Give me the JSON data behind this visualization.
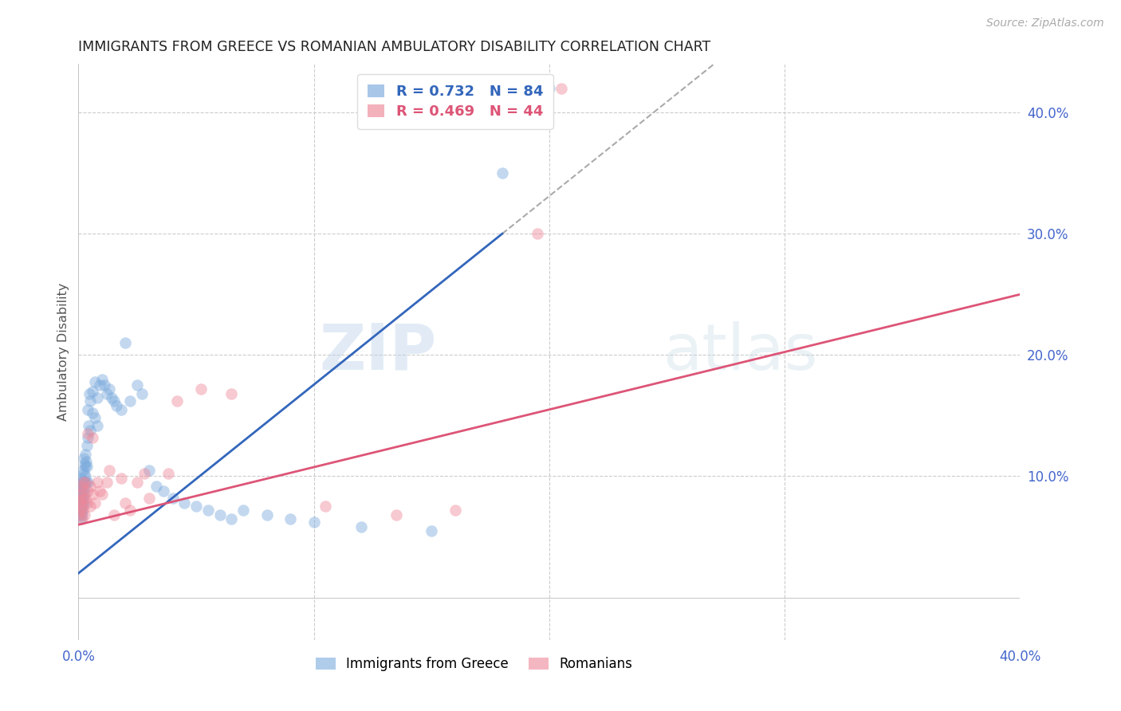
{
  "title": "IMMIGRANTS FROM GREECE VS ROMANIAN AMBULATORY DISABILITY CORRELATION CHART",
  "source": "Source: ZipAtlas.com",
  "ylabel": "Ambulatory Disability",
  "xmin": 0.0,
  "xmax": 0.4,
  "ymin": -0.035,
  "ymax": 0.44,
  "yticks": [
    0.0,
    0.1,
    0.2,
    0.3,
    0.4
  ],
  "ytick_labels": [
    "",
    "10.0%",
    "20.0%",
    "30.0%",
    "40.0%"
  ],
  "xticks": [
    0.0,
    0.1,
    0.2,
    0.3,
    0.4
  ],
  "xtick_labels": [
    "0.0%",
    "",
    "",
    "",
    "40.0%"
  ],
  "greece_color": "#7aaadd",
  "romania_color": "#ee8899",
  "greece_line_color": "#3366bb",
  "romania_line_color": "#dd5577",
  "tick_color": "#4466cc",
  "greece_R": 0.732,
  "greece_N": 84,
  "romania_R": 0.469,
  "romania_N": 44,
  "watermark_zip": "ZIP",
  "watermark_atlas": "atlas",
  "greece_points_x": [
    0.0002,
    0.0003,
    0.0004,
    0.0005,
    0.0005,
    0.0006,
    0.0007,
    0.0008,
    0.0008,
    0.0009,
    0.001,
    0.001,
    0.001,
    0.0012,
    0.0012,
    0.0013,
    0.0013,
    0.0014,
    0.0015,
    0.0015,
    0.0016,
    0.0017,
    0.0018,
    0.0018,
    0.0019,
    0.002,
    0.002,
    0.0021,
    0.0022,
    0.0023,
    0.0024,
    0.0025,
    0.0026,
    0.0027,
    0.0028,
    0.003,
    0.003,
    0.0032,
    0.0033,
    0.0035,
    0.0036,
    0.0038,
    0.004,
    0.004,
    0.0042,
    0.0045,
    0.005,
    0.005,
    0.006,
    0.006,
    0.007,
    0.007,
    0.008,
    0.008,
    0.009,
    0.01,
    0.011,
    0.012,
    0.013,
    0.014,
    0.015,
    0.016,
    0.018,
    0.02,
    0.022,
    0.025,
    0.027,
    0.03,
    0.033,
    0.036,
    0.04,
    0.045,
    0.05,
    0.055,
    0.06,
    0.065,
    0.07,
    0.08,
    0.09,
    0.1,
    0.12,
    0.15,
    0.18,
    0.2
  ],
  "greece_points_y": [
    0.082,
    0.075,
    0.068,
    0.09,
    0.072,
    0.085,
    0.078,
    0.092,
    0.065,
    0.088,
    0.076,
    0.095,
    0.083,
    0.07,
    0.098,
    0.087,
    0.073,
    0.091,
    0.079,
    0.084,
    0.094,
    0.068,
    0.105,
    0.082,
    0.096,
    0.088,
    0.075,
    0.102,
    0.078,
    0.115,
    0.092,
    0.086,
    0.11,
    0.095,
    0.108,
    0.1,
    0.118,
    0.095,
    0.112,
    0.108,
    0.125,
    0.132,
    0.095,
    0.155,
    0.142,
    0.168,
    0.138,
    0.162,
    0.152,
    0.17,
    0.148,
    0.178,
    0.142,
    0.165,
    0.175,
    0.18,
    0.175,
    0.168,
    0.172,
    0.165,
    0.162,
    0.158,
    0.155,
    0.21,
    0.162,
    0.175,
    0.168,
    0.105,
    0.092,
    0.088,
    0.082,
    0.078,
    0.075,
    0.072,
    0.068,
    0.065,
    0.072,
    0.068,
    0.065,
    0.062,
    0.058,
    0.055,
    0.35,
    0.42
  ],
  "romania_points_x": [
    0.0003,
    0.0005,
    0.0007,
    0.0008,
    0.001,
    0.0012,
    0.0013,
    0.0015,
    0.0016,
    0.0018,
    0.002,
    0.002,
    0.0025,
    0.003,
    0.003,
    0.0035,
    0.004,
    0.004,
    0.005,
    0.005,
    0.006,
    0.006,
    0.007,
    0.008,
    0.009,
    0.01,
    0.012,
    0.013,
    0.015,
    0.018,
    0.02,
    0.022,
    0.025,
    0.028,
    0.03,
    0.038,
    0.042,
    0.052,
    0.065,
    0.105,
    0.135,
    0.16,
    0.195,
    0.205
  ],
  "romania_points_y": [
    0.078,
    0.072,
    0.068,
    0.085,
    0.08,
    0.092,
    0.075,
    0.065,
    0.088,
    0.095,
    0.082,
    0.072,
    0.068,
    0.095,
    0.082,
    0.078,
    0.135,
    0.088,
    0.075,
    0.092,
    0.085,
    0.132,
    0.078,
    0.095,
    0.088,
    0.085,
    0.095,
    0.105,
    0.068,
    0.098,
    0.078,
    0.072,
    0.095,
    0.102,
    0.082,
    0.102,
    0.162,
    0.172,
    0.168,
    0.075,
    0.068,
    0.072,
    0.3,
    0.42
  ],
  "greece_line_x": [
    0.0,
    0.18
  ],
  "greece_line_y_start": 0.02,
  "greece_line_y_end": 0.3,
  "romania_line_x": [
    0.0,
    0.4
  ],
  "romania_line_y_start": 0.06,
  "romania_line_y_end": 0.25
}
